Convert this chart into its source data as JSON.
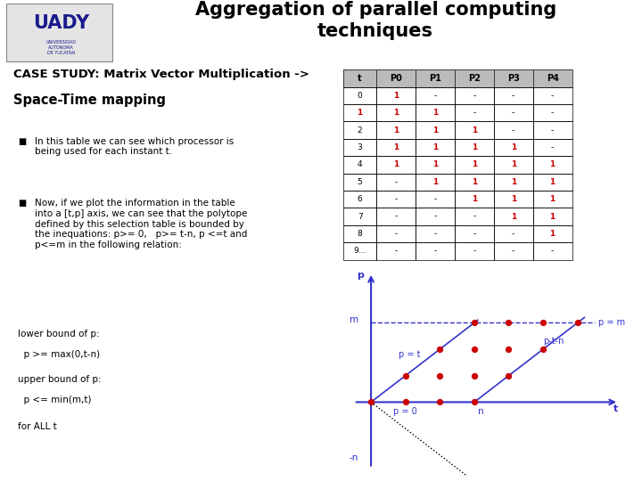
{
  "title": "Aggregation of parallel computing\ntechniques",
  "subtitle1": "CASE STUDY: Matrix Vector Multiplication ->",
  "subtitle2": "Space-Time mapping",
  "bullet1": "In this table we can see which processor is\nbeing used for each instant t.",
  "bullet2": "Now, if we plot the information in the table\ninto a [t,p] axis, we can see that the polytope\ndefined by this selection table is bounded by\nthe inequations: p>= 0,   p>= t-n, p <=t and\np<=m in the following relation:",
  "lower_bound_header": "lower bound of p:",
  "lower_bound": "  p >= max(0,t-n)",
  "upper_bound_header": "upper bound of p:",
  "upper_bound": "  p <= min(m,t)",
  "for_all": "for ALL t",
  "table_headers": [
    "t",
    "P0",
    "P1",
    "P2",
    "P3",
    "P4"
  ],
  "table_rows": [
    [
      "0",
      "1",
      "-",
      "-",
      "-",
      "-"
    ],
    [
      "1",
      "1",
      "1",
      "-",
      "-",
      "-"
    ],
    [
      "2",
      "1",
      "1",
      "1",
      "-",
      "-"
    ],
    [
      "3",
      "1",
      "1",
      "1",
      "1",
      "-"
    ],
    [
      "4",
      "1",
      "1",
      "1",
      "1",
      "1"
    ],
    [
      "5",
      "-",
      "1",
      "1",
      "1",
      "1"
    ],
    [
      "6",
      "-",
      "-",
      "1",
      "1",
      "1"
    ],
    [
      "7",
      "-",
      "-",
      "-",
      "1",
      "1"
    ],
    [
      "8",
      "-",
      "-",
      "-",
      "-",
      "1"
    ],
    [
      "9...",
      "-",
      "-",
      "-",
      "-",
      "-"
    ]
  ],
  "red_color": "#cc0000",
  "blue_color": "#3333cc",
  "black_color": "#000000",
  "bg_color": "#ffffff",
  "header_bg": "#bbbbbb"
}
